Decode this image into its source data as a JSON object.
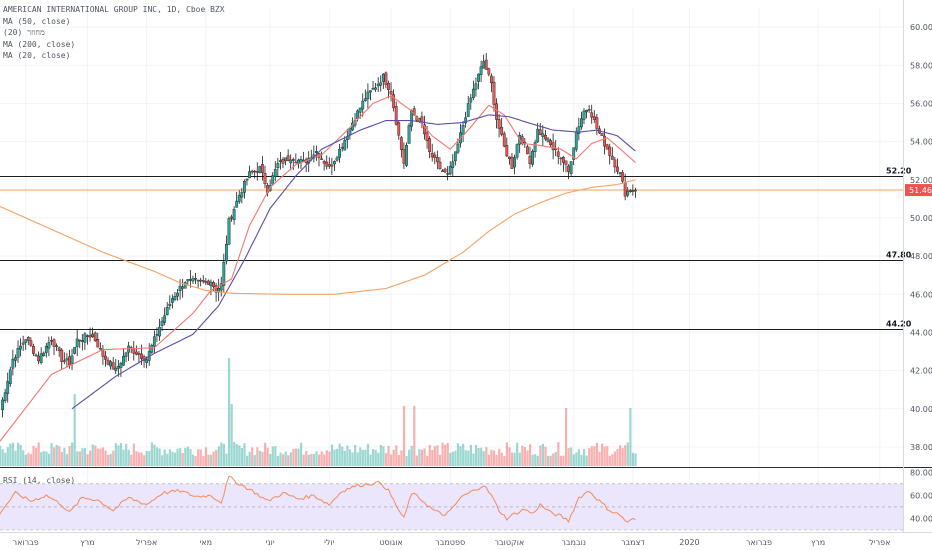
{
  "legend": {
    "symbol": "AMERICAN INTERNATIONAL GROUP INC, 1D, Cboe BZX",
    "ma50": "MA (50, close)",
    "channel": "מחוזר (20)",
    "ma200": "MA (200, close)",
    "ma20": "MA (20, close)"
  },
  "rsi_title": "RSI (14, close)",
  "colors": {
    "up": "#26a69a",
    "down": "#ef5350",
    "ma20": "#f4766e",
    "ma50": "#5b4da8",
    "ma200": "#f4a261",
    "last_price_line": "#f4a261",
    "last_price_badge": "#ef5350",
    "rsi_line": "#f08a5d",
    "rsi_band": "#e9e2fb",
    "hline": "#1e1e1e",
    "grid": "#f0f3f8"
  },
  "chart_data": [
    {
      "type": "candlestick",
      "title": "AMERICAN INTERNATIONAL GROUP INC, 1D, Cboe BZX",
      "price_axis": {
        "ylim": [
          37,
          61
        ],
        "ticks": [
          "60.00",
          "58.00",
          "56.00",
          "54.00",
          "52.00",
          "50.00",
          "48.00",
          "46.00",
          "44.00",
          "42.00",
          "40.00",
          "38.00"
        ],
        "side": "right"
      },
      "time_axis": {
        "labels": [
          "פברואר",
          "מרץ",
          "אפריל",
          "מאי",
          "יוני",
          "יולי",
          "אוגוסט",
          "ספטמבר",
          "אוקטובר",
          "נובמבר",
          "דצמבר",
          "2020",
          "פברואר",
          "מרץ",
          "אפריל"
        ],
        "label_days": [
          10,
          34,
          57,
          80,
          105,
          128,
          152,
          175,
          198,
          223,
          246,
          268,
          295,
          318,
          342
        ]
      },
      "horizontal_lines": [
        {
          "value": 52.2,
          "label": "52.20"
        },
        {
          "value": 47.8,
          "label": "47.80"
        },
        {
          "value": 44.2,
          "label": "44.20"
        }
      ],
      "last_price": {
        "value": 51.46,
        "label": "51.46"
      },
      "anchors": [
        {
          "day": 0,
          "close": 39.9
        },
        {
          "day": 5,
          "close": 42.6
        },
        {
          "day": 10,
          "close": 43.7
        },
        {
          "day": 15,
          "close": 42.6
        },
        {
          "day": 20,
          "close": 43.7
        },
        {
          "day": 24,
          "close": 42.6
        },
        {
          "day": 27,
          "close": 42.4
        },
        {
          "day": 30,
          "close": 43.6
        },
        {
          "day": 36,
          "close": 43.9
        },
        {
          "day": 40,
          "close": 42.8
        },
        {
          "day": 45,
          "close": 42.0
        },
        {
          "day": 50,
          "close": 43.2
        },
        {
          "day": 57,
          "close": 42.6
        },
        {
          "day": 62,
          "close": 44.3
        },
        {
          "day": 67,
          "close": 45.8
        },
        {
          "day": 72,
          "close": 46.7
        },
        {
          "day": 78,
          "close": 46.6
        },
        {
          "day": 82,
          "close": 46.7
        },
        {
          "day": 84,
          "close": 46.2
        },
        {
          "day": 86,
          "close": 46.5
        },
        {
          "day": 89,
          "close": 49.8
        },
        {
          "day": 93,
          "close": 51.2
        },
        {
          "day": 97,
          "close": 52.3
        },
        {
          "day": 101,
          "close": 52.6
        },
        {
          "day": 104,
          "close": 51.5
        },
        {
          "day": 108,
          "close": 52.8
        },
        {
          "day": 113,
          "close": 53.2
        },
        {
          "day": 118,
          "close": 52.9
        },
        {
          "day": 123,
          "close": 53.5
        },
        {
          "day": 128,
          "close": 52.6
        },
        {
          "day": 133,
          "close": 53.8
        },
        {
          "day": 137,
          "close": 55.0
        },
        {
          "day": 142,
          "close": 56.3
        },
        {
          "day": 146,
          "close": 56.9
        },
        {
          "day": 149,
          "close": 57.4
        },
        {
          "day": 152,
          "close": 56.6
        },
        {
          "day": 155,
          "close": 54.3
        },
        {
          "day": 157,
          "close": 52.9
        },
        {
          "day": 160,
          "close": 55.6
        },
        {
          "day": 164,
          "close": 54.9
        },
        {
          "day": 167,
          "close": 53.4
        },
        {
          "day": 171,
          "close": 52.6
        },
        {
          "day": 174,
          "close": 52.2
        },
        {
          "day": 177,
          "close": 53.3
        },
        {
          "day": 181,
          "close": 55.4
        },
        {
          "day": 184,
          "close": 56.7
        },
        {
          "day": 188,
          "close": 58.2
        },
        {
          "day": 191,
          "close": 57.0
        },
        {
          "day": 193,
          "close": 55.2
        },
        {
          "day": 196,
          "close": 53.7
        },
        {
          "day": 199,
          "close": 52.7
        },
        {
          "day": 202,
          "close": 54.4
        },
        {
          "day": 206,
          "close": 53.0
        },
        {
          "day": 209,
          "close": 54.6
        },
        {
          "day": 212,
          "close": 54.2
        },
        {
          "day": 215,
          "close": 53.6
        },
        {
          "day": 218,
          "close": 53.2
        },
        {
          "day": 221,
          "close": 52.4
        },
        {
          "day": 224,
          "close": 54.5
        },
        {
          "day": 227,
          "close": 55.6
        },
        {
          "day": 229,
          "close": 55.8
        },
        {
          "day": 232,
          "close": 54.7
        },
        {
          "day": 235,
          "close": 53.9
        },
        {
          "day": 238,
          "close": 53.1
        },
        {
          "day": 241,
          "close": 52.3
        },
        {
          "day": 243,
          "close": 51.3
        },
        {
          "day": 245,
          "close": 51.5
        },
        {
          "day": 247,
          "close": 51.46
        }
      ],
      "moving_averages": [
        {
          "name": "MA (20, close)",
          "color_key": "ma20",
          "points": [
            [
              0,
              38.3
            ],
            [
              20,
              41.8
            ],
            [
              40,
              43.1
            ],
            [
              60,
              43.2
            ],
            [
              75,
              45.0
            ],
            [
              82,
              46.2
            ],
            [
              90,
              46.8
            ],
            [
              97,
              49.6
            ],
            [
              105,
              51.6
            ],
            [
              115,
              52.8
            ],
            [
              125,
              53.3
            ],
            [
              135,
              54.6
            ],
            [
              145,
              56.0
            ],
            [
              152,
              56.4
            ],
            [
              160,
              55.6
            ],
            [
              168,
              54.3
            ],
            [
              175,
              53.6
            ],
            [
              182,
              54.6
            ],
            [
              190,
              55.9
            ],
            [
              196,
              55.4
            ],
            [
              203,
              53.9
            ],
            [
              210,
              53.8
            ],
            [
              218,
              53.6
            ],
            [
              224,
              53.1
            ],
            [
              230,
              53.9
            ],
            [
              236,
              54.2
            ],
            [
              242,
              53.5
            ],
            [
              247,
              52.9
            ]
          ]
        },
        {
          "name": "MA (50, close)",
          "color_key": "ma50",
          "points": [
            [
              28,
              40.0
            ],
            [
              45,
              41.7
            ],
            [
              60,
              42.9
            ],
            [
              75,
              43.9
            ],
            [
              85,
              45.4
            ],
            [
              95,
              47.8
            ],
            [
              105,
              50.5
            ],
            [
              115,
              52.2
            ],
            [
              125,
              53.6
            ],
            [
              140,
              54.6
            ],
            [
              150,
              55.1
            ],
            [
              160,
              55.1
            ],
            [
              170,
              54.9
            ],
            [
              180,
              55.0
            ],
            [
              190,
              55.4
            ],
            [
              198,
              55.3
            ],
            [
              205,
              55.0
            ],
            [
              215,
              54.6
            ],
            [
              225,
              54.5
            ],
            [
              232,
              54.6
            ],
            [
              240,
              54.3
            ],
            [
              247,
              53.5
            ]
          ]
        },
        {
          "name": "MA (200, close)",
          "color_key": "ma200",
          "points": [
            [
              0,
              50.6
            ],
            [
              20,
              49.4
            ],
            [
              40,
              48.2
            ],
            [
              60,
              47.2
            ],
            [
              70,
              46.6
            ],
            [
              80,
              46.2
            ],
            [
              90,
              46.05
            ],
            [
              110,
              46.0
            ],
            [
              130,
              46.0
            ],
            [
              150,
              46.3
            ],
            [
              165,
              47.0
            ],
            [
              180,
              48.2
            ],
            [
              190,
              49.3
            ],
            [
              200,
              50.2
            ],
            [
              210,
              50.8
            ],
            [
              220,
              51.3
            ],
            [
              230,
              51.6
            ],
            [
              240,
              51.75
            ],
            [
              247,
              52.0
            ]
          ]
        }
      ],
      "volume_spikes": [
        {
          "day": 29,
          "rel": 0.8
        },
        {
          "day": 89,
          "rel": 1.7
        },
        {
          "day": 90,
          "rel": 0.55
        },
        {
          "day": 157,
          "rel": 0.5
        },
        {
          "day": 161,
          "rel": 0.5
        },
        {
          "day": 220,
          "rel": 0.45
        },
        {
          "day": 245,
          "rel": 0.45
        }
      ]
    },
    {
      "type": "line",
      "title": "RSI (14, close)",
      "ylim": [
        30,
        82
      ],
      "ticks": [
        "80.00",
        "60.00",
        "40.00"
      ],
      "band": [
        30,
        70
      ],
      "anchors": [
        [
          0,
          45
        ],
        [
          6,
          62
        ],
        [
          12,
          55
        ],
        [
          18,
          60
        ],
        [
          24,
          52
        ],
        [
          27,
          45
        ],
        [
          32,
          58
        ],
        [
          38,
          56
        ],
        [
          44,
          47
        ],
        [
          50,
          58
        ],
        [
          57,
          52
        ],
        [
          63,
          62
        ],
        [
          70,
          64
        ],
        [
          76,
          59
        ],
        [
          82,
          60
        ],
        [
          86,
          54
        ],
        [
          89,
          76
        ],
        [
          93,
          70
        ],
        [
          98,
          64
        ],
        [
          104,
          55
        ],
        [
          110,
          62
        ],
        [
          116,
          57
        ],
        [
          122,
          60
        ],
        [
          128,
          52
        ],
        [
          133,
          64
        ],
        [
          138,
          68
        ],
        [
          143,
          70
        ],
        [
          148,
          71
        ],
        [
          151,
          64
        ],
        [
          155,
          47
        ],
        [
          157,
          40
        ],
        [
          160,
          62
        ],
        [
          164,
          56
        ],
        [
          168,
          48
        ],
        [
          172,
          43
        ],
        [
          175,
          46
        ],
        [
          179,
          58
        ],
        [
          184,
          64
        ],
        [
          188,
          69
        ],
        [
          191,
          60
        ],
        [
          194,
          47
        ],
        [
          197,
          40
        ],
        [
          200,
          44
        ],
        [
          204,
          48
        ],
        [
          207,
          44
        ],
        [
          210,
          52
        ],
        [
          214,
          45
        ],
        [
          218,
          42
        ],
        [
          221,
          38
        ],
        [
          225,
          58
        ],
        [
          229,
          64
        ],
        [
          233,
          55
        ],
        [
          237,
          47
        ],
        [
          241,
          43
        ],
        [
          244,
          36
        ],
        [
          246,
          40
        ],
        [
          247,
          38
        ]
      ]
    }
  ]
}
